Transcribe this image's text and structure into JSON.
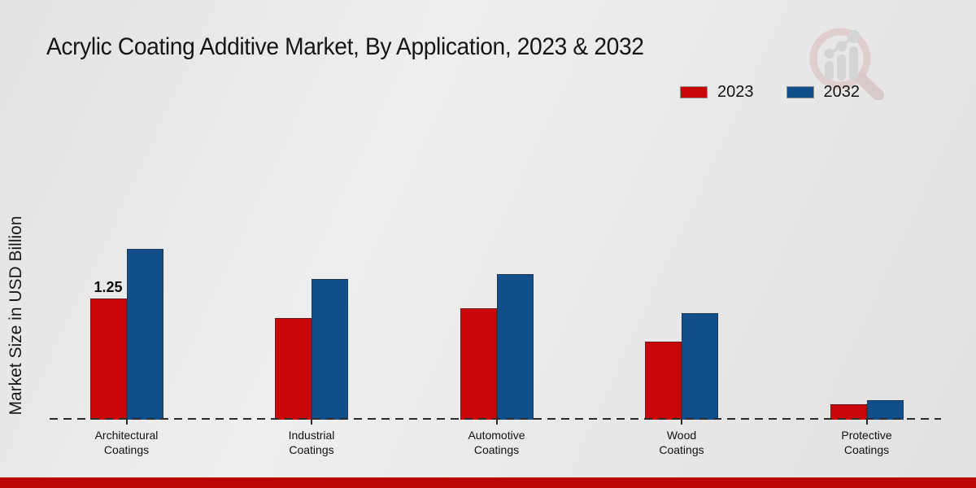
{
  "header": {
    "watermark_icon": "magnifier-bar-chart-logo"
  },
  "footer": {
    "color": "#bb0606"
  },
  "chart_data": {
    "type": "bar",
    "title": "Acrylic Coating Additive Market, By Application, 2023 & 2032",
    "xlabel": "",
    "ylabel": "Market Size in USD Billion",
    "categories": [
      "Architectural Coatings",
      "Industrial Coatings",
      "Automotive Coatings",
      "Wood Coatings",
      "Protective Coatings"
    ],
    "series": [
      {
        "name": "2023",
        "color": "#c9070a",
        "values": [
          1.25,
          1.05,
          1.15,
          0.8,
          0.16
        ]
      },
      {
        "name": "2032",
        "color": "#114f8b",
        "values": [
          1.76,
          1.45,
          1.5,
          1.1,
          0.2
        ]
      }
    ],
    "annotations": [
      {
        "series": 0,
        "category": 0,
        "text": "1.25"
      }
    ],
    "legend_position": "top-right",
    "grid": false,
    "axis_style": "dashed-baseline-only",
    "ylim": [
      0,
      2
    ]
  }
}
